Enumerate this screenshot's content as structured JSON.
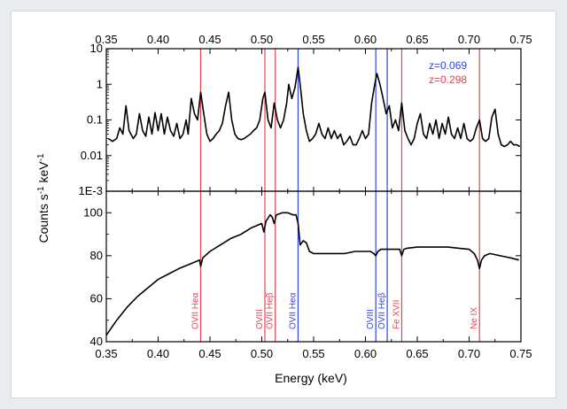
{
  "colors": {
    "red": "#e8414f",
    "blue": "#2f44e6",
    "line": "#000000"
  },
  "chart_data": [
    {
      "type": "line",
      "panel": "top",
      "xlabel": "",
      "ylabel": "Counts s-1 keV-1",
      "y_scale": "log",
      "xlim": [
        0.35,
        0.75
      ],
      "ylim": [
        0.001,
        10
      ],
      "x_ticks": [
        "0.35",
        "0.40",
        "0.45",
        "0.50",
        "0.55",
        "0.60",
        "0.65",
        "0.70",
        "0.75"
      ],
      "y_ticks": [
        {
          "value": 10,
          "label": "10"
        },
        {
          "value": 1,
          "label": "1"
        },
        {
          "value": 0.1,
          "label": "0.1"
        },
        {
          "value": 0.01,
          "label": "0.01"
        },
        {
          "value": 0.001,
          "label": "1E-3"
        }
      ],
      "annotations": [
        {
          "text": "z=0.069",
          "color": "blue"
        },
        {
          "text": "z=0.298",
          "color": "red"
        }
      ],
      "series": [
        {
          "points": [
            [
              0.352,
              0.03
            ],
            [
              0.356,
              0.025
            ],
            [
              0.36,
              0.03
            ],
            [
              0.363,
              0.06
            ],
            [
              0.366,
              0.04
            ],
            [
              0.369,
              0.25
            ],
            [
              0.372,
              0.05
            ],
            [
              0.376,
              0.03
            ],
            [
              0.379,
              0.04
            ],
            [
              0.382,
              0.15
            ],
            [
              0.385,
              0.05
            ],
            [
              0.388,
              0.035
            ],
            [
              0.391,
              0.12
            ],
            [
              0.394,
              0.04
            ],
            [
              0.397,
              0.16
            ],
            [
              0.4,
              0.05
            ],
            [
              0.403,
              0.15
            ],
            [
              0.406,
              0.04
            ],
            [
              0.409,
              0.12
            ],
            [
              0.412,
              0.05
            ],
            [
              0.415,
              0.035
            ],
            [
              0.418,
              0.08
            ],
            [
              0.421,
              0.03
            ],
            [
              0.424,
              0.04
            ],
            [
              0.427,
              0.1
            ],
            [
              0.429,
              0.04
            ],
            [
              0.432,
              0.4
            ],
            [
              0.435,
              0.15
            ],
            [
              0.438,
              0.1
            ],
            [
              0.441,
              0.6
            ],
            [
              0.444,
              0.15
            ],
            [
              0.447,
              0.04
            ],
            [
              0.45,
              0.025
            ],
            [
              0.453,
              0.03
            ],
            [
              0.456,
              0.04
            ],
            [
              0.459,
              0.05
            ],
            [
              0.462,
              0.08
            ],
            [
              0.465,
              0.25
            ],
            [
              0.468,
              0.6
            ],
            [
              0.471,
              0.1
            ],
            [
              0.474,
              0.04
            ],
            [
              0.477,
              0.03
            ],
            [
              0.48,
              0.028
            ],
            [
              0.483,
              0.03
            ],
            [
              0.486,
              0.035
            ],
            [
              0.489,
              0.04
            ],
            [
              0.492,
              0.05
            ],
            [
              0.495,
              0.06
            ],
            [
              0.498,
              0.1
            ],
            [
              0.501,
              0.4
            ],
            [
              0.503,
              0.6
            ],
            [
              0.506,
              0.1
            ],
            [
              0.509,
              0.06
            ],
            [
              0.512,
              0.3
            ],
            [
              0.515,
              0.1
            ],
            [
              0.518,
              0.06
            ],
            [
              0.521,
              0.1
            ],
            [
              0.524,
              0.3
            ],
            [
              0.526,
              1.0
            ],
            [
              0.529,
              0.4
            ],
            [
              0.532,
              0.8
            ],
            [
              0.535,
              3.0
            ],
            [
              0.537,
              1.0
            ],
            [
              0.54,
              0.15
            ],
            [
              0.543,
              0.05
            ],
            [
              0.546,
              0.025
            ],
            [
              0.549,
              0.03
            ],
            [
              0.552,
              0.04
            ],
            [
              0.555,
              0.08
            ],
            [
              0.558,
              0.04
            ],
            [
              0.561,
              0.03
            ],
            [
              0.564,
              0.06
            ],
            [
              0.567,
              0.03
            ],
            [
              0.57,
              0.05
            ],
            [
              0.573,
              0.03
            ],
            [
              0.576,
              0.04
            ],
            [
              0.579,
              0.02
            ],
            [
              0.582,
              0.025
            ],
            [
              0.585,
              0.035
            ],
            [
              0.588,
              0.02
            ],
            [
              0.591,
              0.02
            ],
            [
              0.594,
              0.03
            ],
            [
              0.597,
              0.05
            ],
            [
              0.6,
              0.03
            ],
            [
              0.603,
              0.04
            ],
            [
              0.606,
              0.3
            ],
            [
              0.609,
              1.0
            ],
            [
              0.611,
              2.0
            ],
            [
              0.614,
              1.0
            ],
            [
              0.617,
              0.4
            ],
            [
              0.62,
              0.15
            ],
            [
              0.623,
              0.25
            ],
            [
              0.626,
              0.06
            ],
            [
              0.629,
              0.1
            ],
            [
              0.632,
              0.05
            ],
            [
              0.635,
              0.3
            ],
            [
              0.638,
              0.05
            ],
            [
              0.641,
              0.03
            ],
            [
              0.644,
              0.02
            ],
            [
              0.647,
              0.03
            ],
            [
              0.65,
              0.08
            ],
            [
              0.653,
              0.15
            ],
            [
              0.656,
              0.04
            ],
            [
              0.659,
              0.03
            ],
            [
              0.662,
              0.08
            ],
            [
              0.665,
              0.04
            ],
            [
              0.668,
              0.1
            ],
            [
              0.671,
              0.03
            ],
            [
              0.674,
              0.08
            ],
            [
              0.677,
              0.04
            ],
            [
              0.68,
              0.12
            ],
            [
              0.683,
              0.04
            ],
            [
              0.686,
              0.03
            ],
            [
              0.689,
              0.06
            ],
            [
              0.692,
              0.03
            ],
            [
              0.695,
              0.08
            ],
            [
              0.698,
              0.03
            ],
            [
              0.701,
              0.025
            ],
            [
              0.704,
              0.03
            ],
            [
              0.707,
              0.06
            ],
            [
              0.71,
              0.1
            ],
            [
              0.713,
              0.03
            ],
            [
              0.716,
              0.025
            ],
            [
              0.719,
              0.03
            ],
            [
              0.722,
              0.12
            ],
            [
              0.725,
              0.2
            ],
            [
              0.728,
              0.04
            ],
            [
              0.731,
              0.02
            ],
            [
              0.734,
              0.018
            ],
            [
              0.737,
              0.02
            ],
            [
              0.74,
              0.025
            ],
            [
              0.743,
              0.02
            ],
            [
              0.746,
              0.02
            ],
            [
              0.749,
              0.018
            ]
          ]
        }
      ]
    },
    {
      "type": "line",
      "panel": "bottom",
      "xlabel": "Energy (keV)",
      "ylabel": "",
      "xlim": [
        0.35,
        0.75
      ],
      "ylim": [
        40,
        110
      ],
      "x_ticks": [
        "0.35",
        "0.40",
        "0.45",
        "0.50",
        "0.55",
        "0.60",
        "0.65",
        "0.70",
        "0.75"
      ],
      "y_ticks": [
        {
          "value": 40,
          "label": "40"
        },
        {
          "value": 60,
          "label": "60"
        },
        {
          "value": 80,
          "label": "80"
        },
        {
          "value": 100,
          "label": "100"
        }
      ],
      "series": [
        {
          "points": [
            [
              0.35,
              43
            ],
            [
              0.36,
              50
            ],
            [
              0.37,
              56
            ],
            [
              0.38,
              61
            ],
            [
              0.39,
              65
            ],
            [
              0.4,
              69
            ],
            [
              0.41,
              71.5
            ],
            [
              0.42,
              74
            ],
            [
              0.43,
              76
            ],
            [
              0.435,
              77
            ],
            [
              0.44,
              78
            ],
            [
              0.441,
              75
            ],
            [
              0.443,
              79
            ],
            [
              0.45,
              82
            ],
            [
              0.46,
              85
            ],
            [
              0.47,
              88
            ],
            [
              0.48,
              90
            ],
            [
              0.49,
              93
            ],
            [
              0.495,
              94
            ],
            [
              0.5,
              95
            ],
            [
              0.502,
              91
            ],
            [
              0.504,
              96
            ],
            [
              0.508,
              99
            ],
            [
              0.51,
              98
            ],
            [
              0.512,
              95
            ],
            [
              0.514,
              99
            ],
            [
              0.52,
              100
            ],
            [
              0.525,
              100
            ],
            [
              0.53,
              99
            ],
            [
              0.533,
              99
            ],
            [
              0.535,
              95
            ],
            [
              0.537,
              85
            ],
            [
              0.54,
              87
            ],
            [
              0.543,
              86
            ],
            [
              0.546,
              82
            ],
            [
              0.55,
              81
            ],
            [
              0.56,
              81
            ],
            [
              0.57,
              81
            ],
            [
              0.58,
              81
            ],
            [
              0.59,
              82
            ],
            [
              0.6,
              82
            ],
            [
              0.605,
              82
            ],
            [
              0.608,
              81
            ],
            [
              0.61,
              80
            ],
            [
              0.612,
              82
            ],
            [
              0.615,
              83
            ],
            [
              0.62,
              83
            ],
            [
              0.625,
              83
            ],
            [
              0.63,
              83
            ],
            [
              0.633,
              83
            ],
            [
              0.635,
              80
            ],
            [
              0.637,
              83
            ],
            [
              0.64,
              83.5
            ],
            [
              0.65,
              84
            ],
            [
              0.66,
              84
            ],
            [
              0.67,
              84
            ],
            [
              0.68,
              84
            ],
            [
              0.69,
              83.5
            ],
            [
              0.7,
              83
            ],
            [
              0.705,
              81
            ],
            [
              0.708,
              78
            ],
            [
              0.71,
              74
            ],
            [
              0.712,
              78
            ],
            [
              0.715,
              80
            ],
            [
              0.72,
              81
            ],
            [
              0.73,
              80
            ],
            [
              0.74,
              79
            ],
            [
              0.748,
              78
            ]
          ]
        }
      ]
    }
  ],
  "lines": [
    {
      "x": 0.441,
      "color": "red",
      "label": "OVII Heα"
    },
    {
      "x": 0.503,
      "color": "red",
      "label": "OVIII"
    },
    {
      "x": 0.513,
      "color": "red",
      "label": "OVII Heβ"
    },
    {
      "x": 0.535,
      "color": "blue",
      "label": "OVII Heα"
    },
    {
      "x": 0.61,
      "color": "blue",
      "label": "OVIII"
    },
    {
      "x": 0.621,
      "color": "blue",
      "label": "OVII Heβ"
    },
    {
      "x": 0.635,
      "color": "red",
      "label": "Fe XVII"
    },
    {
      "x": 0.71,
      "color": "red",
      "label": "Ne IX"
    }
  ]
}
